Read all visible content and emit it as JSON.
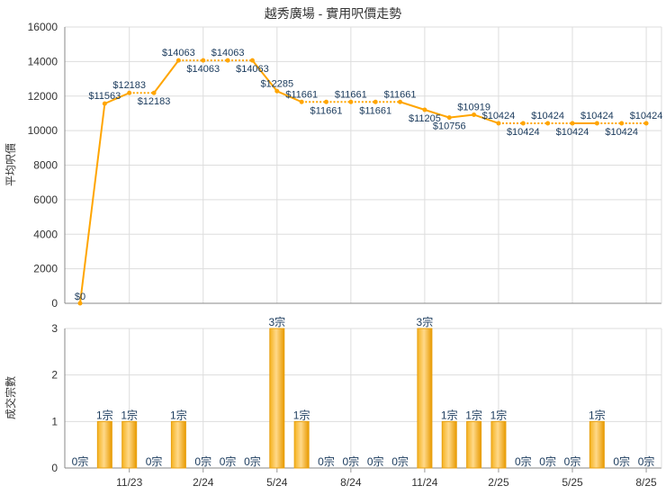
{
  "chart_data": [
    {
      "type": "line",
      "title": "越秀廣場 - 實用呎價走勢",
      "ylabel": "平均呎價",
      "ylim": [
        0,
        16000
      ],
      "yticks": [
        0,
        2000,
        4000,
        6000,
        8000,
        10000,
        12000,
        14000,
        16000
      ],
      "values": [
        0,
        11563,
        12183,
        12183,
        14063,
        14063,
        14063,
        14063,
        12285,
        11661,
        11661,
        11661,
        11661,
        11661,
        11205,
        10756,
        10919,
        10424,
        10424,
        10424,
        10424,
        10424,
        10424,
        10424
      ],
      "labels": [
        "$0",
        "$11563",
        "$12183",
        "$12183",
        "$14063",
        "$14063",
        "$14063",
        "$14063",
        "$12285",
        "$11661",
        "$11661",
        "$11661",
        "$11661",
        "$11661",
        "$11205",
        "$10756",
        "$10919",
        "$10424",
        "$10424",
        "$10424",
        "$10424",
        "$10424",
        "$10424",
        "$10424"
      ],
      "color": "#FFA500",
      "grid": true
    },
    {
      "type": "bar",
      "ylabel": "成交宗數",
      "ylim": [
        0,
        3
      ],
      "yticks": [
        0,
        1,
        2,
        3
      ],
      "values": [
        0,
        1,
        1,
        0,
        1,
        0,
        0,
        0,
        3,
        1,
        0,
        0,
        0,
        0,
        3,
        1,
        1,
        1,
        0,
        0,
        0,
        1,
        0,
        0
      ],
      "labels": [
        "0宗",
        "1宗",
        "1宗",
        "0宗",
        "1宗",
        "0宗",
        "0宗",
        "0宗",
        "3宗",
        "1宗",
        "0宗",
        "0宗",
        "0宗",
        "0宗",
        "3宗",
        "1宗",
        "1宗",
        "1宗",
        "0宗",
        "0宗",
        "0宗",
        "1宗",
        "0宗",
        "0宗"
      ],
      "xticks": [
        {
          "index": 2,
          "label": "11/23"
        },
        {
          "index": 5,
          "label": "2/24"
        },
        {
          "index": 8,
          "label": "5/24"
        },
        {
          "index": 11,
          "label": "8/24"
        },
        {
          "index": 14,
          "label": "11/24"
        },
        {
          "index": 17,
          "label": "2/25"
        },
        {
          "index": 20,
          "label": "5/25"
        },
        {
          "index": 23,
          "label": "8/25"
        }
      ],
      "color": "#F0A500",
      "grid": true
    }
  ]
}
